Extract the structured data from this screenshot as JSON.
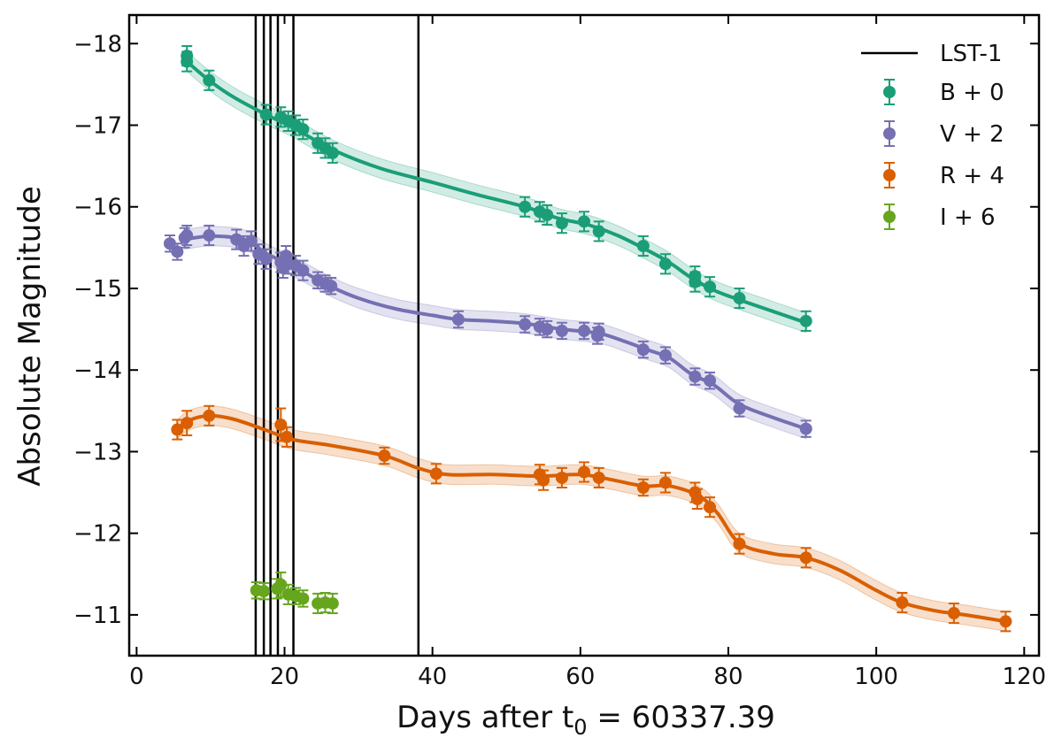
{
  "chart_data": {
    "type": "scatter",
    "xlabel_main": "Days after t",
    "xlabel_sub": "0",
    "xlabel_tail": " = 60337.39",
    "ylabel": "Absolute Magnitude",
    "xlim": [
      -1,
      122
    ],
    "ylim": [
      -10.5,
      -18.35
    ],
    "x_ticks": [
      0,
      20,
      40,
      60,
      80,
      100,
      120
    ],
    "x_tick_labels": [
      "0",
      "20",
      "40",
      "60",
      "80",
      "100",
      "120"
    ],
    "y_ticks": [
      -18,
      -17,
      -16,
      -15,
      -14,
      -13,
      -12,
      -11
    ],
    "y_tick_labels": [
      "−18",
      "−17",
      "−16",
      "−15",
      "−14",
      "−13",
      "−12",
      "−11"
    ],
    "vlines": {
      "label": "LST-1",
      "x": [
        16.1,
        17.2,
        18.1,
        19.1,
        21.2,
        38.1
      ],
      "color": "#000000"
    },
    "series": [
      {
        "name": "B + 0",
        "color": "#1b9e77",
        "x": [
          6.8,
          6.8,
          9.8,
          17.5,
          19.5,
          20.5,
          21.5,
          22.5,
          24.5,
          25.5,
          26.5,
          52.5,
          54.5,
          55.5,
          57.5,
          60.5,
          62.5,
          68.5,
          71.5,
          75.5,
          75.5,
          77.5,
          81.5,
          90.5
        ],
        "y": [
          -17.85,
          -17.78,
          -17.55,
          -17.13,
          -17.1,
          -17.05,
          -17.0,
          -16.95,
          -16.78,
          -16.72,
          -16.66,
          -16.0,
          -15.94,
          -15.9,
          -15.8,
          -15.82,
          -15.7,
          -15.52,
          -15.3,
          -15.15,
          -15.08,
          -15.02,
          -14.88,
          -14.6
        ],
        "err": [
          0.12,
          0.12,
          0.12,
          0.12,
          0.12,
          0.12,
          0.12,
          0.12,
          0.12,
          0.12,
          0.12,
          0.12,
          0.12,
          0.12,
          0.12,
          0.12,
          0.12,
          0.12,
          0.12,
          0.12,
          0.12,
          0.12,
          0.12,
          0.12
        ],
        "curve_x": [
          6.8,
          9.8,
          13.0,
          17.5,
          21.0,
          26.5,
          33.0,
          40.0,
          46.0,
          52.5,
          57.0,
          61.0,
          65.0,
          69.0,
          72.0,
          75.0,
          78.0,
          81.5,
          86.0,
          90.5
        ],
        "curve_y": [
          -17.78,
          -17.55,
          -17.35,
          -17.13,
          -16.98,
          -16.7,
          -16.47,
          -16.3,
          -16.15,
          -16.0,
          -15.86,
          -15.78,
          -15.65,
          -15.47,
          -15.32,
          -15.13,
          -14.98,
          -14.86,
          -14.72,
          -14.58
        ],
        "band": 0.12
      },
      {
        "name": "V + 2",
        "color": "#7570b3",
        "x": [
          4.5,
          5.5,
          6.5,
          6.8,
          9.8,
          13.5,
          14.5,
          15.5,
          16.5,
          17.5,
          19.5,
          19.8,
          20.2,
          20.5,
          21.5,
          22.5,
          24.5,
          25.5,
          26.3,
          43.5,
          52.5,
          54.5,
          55.5,
          57.5,
          60.5,
          62.3,
          62.5,
          68.5,
          71.5,
          75.5,
          77.5,
          81.5,
          90.5
        ],
        "y": [
          -15.55,
          -15.45,
          -15.62,
          -15.65,
          -15.65,
          -15.6,
          -15.52,
          -15.58,
          -15.42,
          -15.36,
          -15.32,
          -15.25,
          -15.4,
          -15.3,
          -15.28,
          -15.22,
          -15.1,
          -15.06,
          -15.03,
          -14.62,
          -14.56,
          -14.53,
          -14.5,
          -14.48,
          -14.48,
          -14.42,
          -14.47,
          -14.25,
          -14.18,
          -13.92,
          -13.87,
          -13.53,
          -13.28
        ],
        "err": [
          0.1,
          0.1,
          0.12,
          0.12,
          0.12,
          0.12,
          0.12,
          0.12,
          0.12,
          0.12,
          0.12,
          0.12,
          0.12,
          0.12,
          0.12,
          0.12,
          0.1,
          0.1,
          0.1,
          0.1,
          0.1,
          0.1,
          0.1,
          0.1,
          0.1,
          0.1,
          0.1,
          0.1,
          0.1,
          0.1,
          0.1,
          0.1,
          0.1
        ],
        "curve_x": [
          6.5,
          9.8,
          13.5,
          15.5,
          17.5,
          20.5,
          23.0,
          26.3,
          30.0,
          35.0,
          40.0,
          43.5,
          48.0,
          52.5,
          57.5,
          62.5,
          66.0,
          69.0,
          72.0,
          75.0,
          78.0,
          81.5,
          86.0,
          90.5
        ],
        "curve_y": [
          -15.6,
          -15.64,
          -15.62,
          -15.56,
          -15.43,
          -15.3,
          -15.18,
          -15.02,
          -14.88,
          -14.75,
          -14.67,
          -14.62,
          -14.6,
          -14.57,
          -14.5,
          -14.45,
          -14.35,
          -14.25,
          -14.15,
          -13.95,
          -13.82,
          -13.58,
          -13.42,
          -13.28
        ],
        "band": 0.12
      },
      {
        "name": "R + 4",
        "color": "#d95f02",
        "x": [
          5.5,
          6.8,
          9.8,
          19.5,
          20.3,
          33.5,
          40.5,
          54.5,
          55.0,
          57.5,
          60.5,
          62.5,
          68.5,
          71.5,
          75.5,
          75.8,
          77.5,
          81.5,
          90.5,
          103.5,
          110.5,
          117.5
        ],
        "y": [
          -13.27,
          -13.35,
          -13.44,
          -13.33,
          -13.18,
          -12.95,
          -12.73,
          -12.72,
          -12.65,
          -12.68,
          -12.75,
          -12.68,
          -12.56,
          -12.62,
          -12.5,
          -12.42,
          -12.32,
          -11.87,
          -11.7,
          -11.15,
          -11.02,
          -10.92
        ],
        "err": [
          0.12,
          0.15,
          0.12,
          0.2,
          0.12,
          0.1,
          0.12,
          0.12,
          0.12,
          0.12,
          0.12,
          0.12,
          0.1,
          0.12,
          0.12,
          0.12,
          0.12,
          0.12,
          0.12,
          0.12,
          0.12,
          0.12
        ],
        "curve_x": [
          5.5,
          7.0,
          9.8,
          13.0,
          17.0,
          21.0,
          26.0,
          33.5,
          38.0,
          42.0,
          48.0,
          54.5,
          60.0,
          64.0,
          68.5,
          72.0,
          76.0,
          78.5,
          81.5,
          86.0,
          90.5,
          95.0,
          100.0,
          103.5,
          108.0,
          112.0,
          117.5
        ],
        "curve_y": [
          -13.27,
          -13.38,
          -13.44,
          -13.4,
          -13.28,
          -13.15,
          -13.08,
          -12.95,
          -12.8,
          -12.72,
          -12.72,
          -12.7,
          -12.72,
          -12.66,
          -12.58,
          -12.58,
          -12.46,
          -12.25,
          -11.88,
          -11.75,
          -11.7,
          -11.55,
          -11.3,
          -11.15,
          -11.05,
          -11.0,
          -10.92
        ],
        "band": 0.12
      },
      {
        "name": "I + 6",
        "color": "#66a61e",
        "x": [
          16.2,
          17.2,
          19.0,
          19.5,
          20.5,
          21.5,
          22.5,
          24.5,
          25.5,
          26.5
        ],
        "y": [
          -11.3,
          -11.29,
          -11.32,
          -11.37,
          -11.25,
          -11.23,
          -11.2,
          -11.14,
          -11.15,
          -11.14
        ],
        "err": [
          0.1,
          0.1,
          0.12,
          0.15,
          0.12,
          0.1,
          0.1,
          0.12,
          0.12,
          0.12
        ],
        "curve_x": [],
        "curve_y": [],
        "band": 0
      }
    ]
  }
}
